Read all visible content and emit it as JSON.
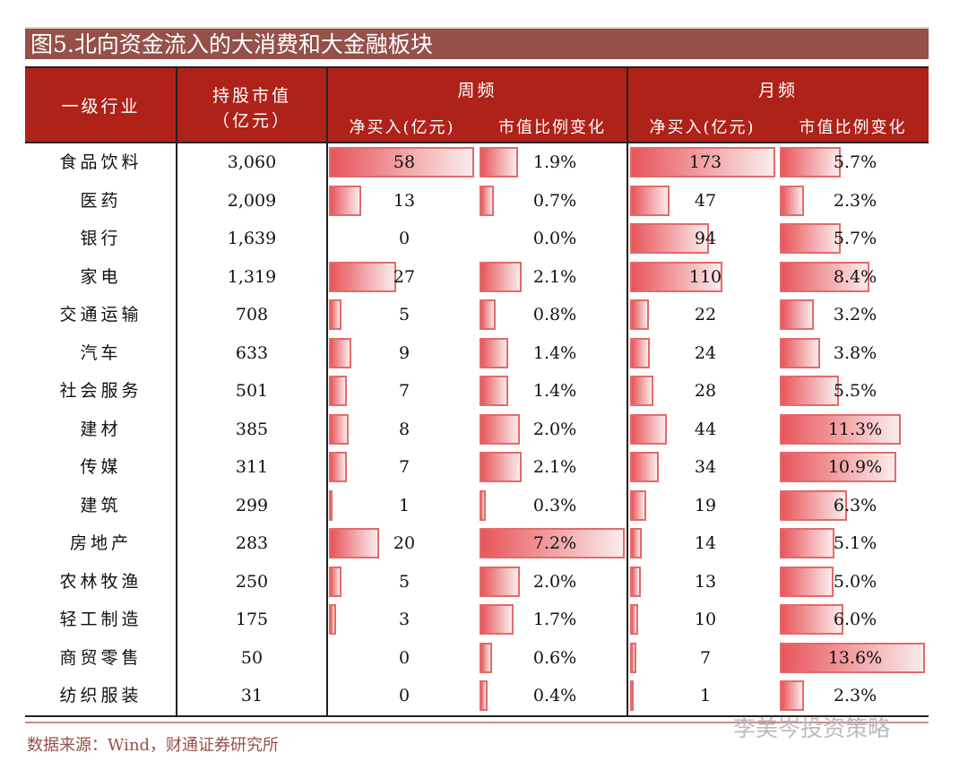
{
  "title": "图5.北向资金流入的大消费和大金融板块",
  "header": {
    "industry": "一级行业",
    "holding_l1": "持股市值",
    "holding_l2": "（亿元）",
    "weekly": "周频",
    "monthly": "月频",
    "net_buy": "净买入(亿元)",
    "ratio_change": "市值比例变化"
  },
  "colors": {
    "header_bg": "#ae2219",
    "title_bg": "#955049",
    "bar": "#e8555a"
  },
  "chart_data": {
    "type": "table",
    "columns": [
      "一级行业",
      "持股市值（亿元）",
      "周频 净买入(亿元)",
      "周频 市值比例变化",
      "月频 净买入(亿元)",
      "月频 市值比例变化"
    ],
    "rows": [
      [
        "食品饮料",
        "3,060",
        58,
        1.9,
        173,
        5.7
      ],
      [
        "医药",
        "2,009",
        13,
        0.7,
        47,
        2.3
      ],
      [
        "银行",
        "1,639",
        0,
        0.0,
        94,
        5.7
      ],
      [
        "家电",
        "1,319",
        27,
        2.1,
        110,
        8.4
      ],
      [
        "交通运输",
        "708",
        5,
        0.8,
        22,
        3.2
      ],
      [
        "汽车",
        "633",
        9,
        1.4,
        24,
        3.8
      ],
      [
        "社会服务",
        "501",
        7,
        1.4,
        28,
        5.5
      ],
      [
        "建材",
        "385",
        8,
        2.0,
        44,
        11.3
      ],
      [
        "传媒",
        "311",
        7,
        2.1,
        34,
        10.9
      ],
      [
        "建筑",
        "299",
        1,
        0.3,
        19,
        6.3
      ],
      [
        "房地产",
        "283",
        20,
        7.2,
        14,
        5.1
      ],
      [
        "农林牧渔",
        "250",
        5,
        2.0,
        13,
        5.0
      ],
      [
        "轻工制造",
        "175",
        3,
        1.7,
        10,
        6.0
      ],
      [
        "商贸零售",
        "50",
        0,
        0.6,
        7,
        13.6
      ],
      [
        "纺织服装",
        "31",
        0,
        0.4,
        1,
        2.3
      ]
    ]
  },
  "source": "数据来源：Wind，财通证券研究所",
  "watermark": "李美岑投资策略"
}
